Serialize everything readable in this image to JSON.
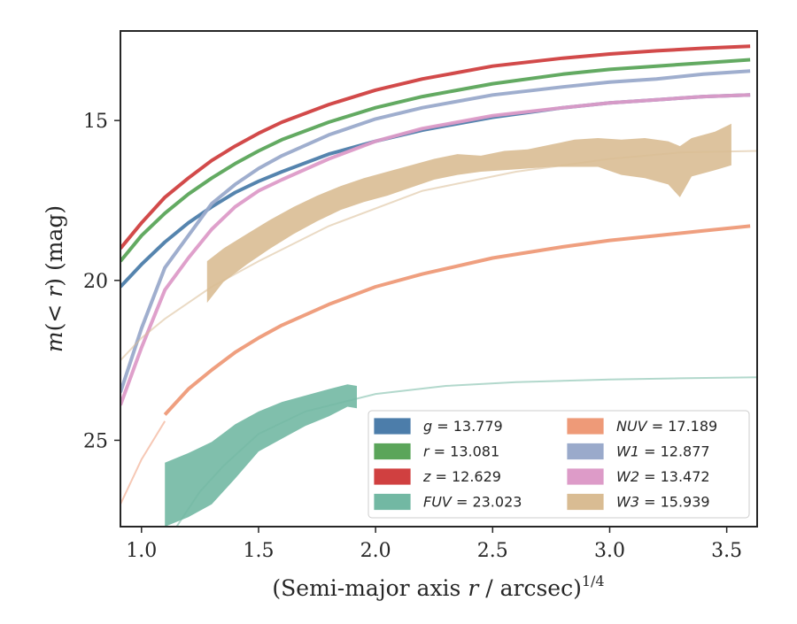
{
  "chart_data": {
    "type": "line",
    "xlabel_text": "(Semi-major axis ",
    "xlabel_var": "r",
    "xlabel_unit": " / arcsec)",
    "xlabel_exp": "1/4",
    "ylabel_pre": "m",
    "ylabel_mid": "(< ",
    "ylabel_var": "r",
    "ylabel_post": ") (mag)",
    "xlim": [
      0.91,
      3.63
    ],
    "ylim": [
      27.7,
      12.2
    ],
    "y_inverted": true,
    "xticks": [
      1.0,
      1.5,
      2.0,
      2.5,
      3.0,
      3.5
    ],
    "xtick_labels": [
      "1.0",
      "1.5",
      "2.0",
      "2.5",
      "3.0",
      "3.5"
    ],
    "yticks": [
      15,
      20,
      25
    ],
    "ytick_labels": [
      "15",
      "20",
      "25"
    ],
    "grid": false,
    "legend_position": "lower-right",
    "series": [
      {
        "name": "g",
        "total": "13.779",
        "color": "#4C7DAA",
        "kind": "line",
        "x": [
          0.91,
          1.0,
          1.1,
          1.2,
          1.3,
          1.4,
          1.5,
          1.6,
          1.8,
          2.0,
          2.2,
          2.5,
          2.8,
          3.0,
          3.2,
          3.4,
          3.6
        ],
        "y": [
          20.2,
          19.5,
          18.8,
          18.2,
          17.7,
          17.25,
          16.9,
          16.6,
          16.05,
          15.65,
          15.3,
          14.9,
          14.6,
          14.45,
          14.35,
          14.25,
          14.2
        ]
      },
      {
        "name": "r",
        "total": "13.081",
        "color": "#5BA55A",
        "kind": "line",
        "x": [
          0.91,
          1.0,
          1.1,
          1.2,
          1.3,
          1.4,
          1.5,
          1.6,
          1.8,
          2.0,
          2.2,
          2.5,
          2.8,
          3.0,
          3.2,
          3.4,
          3.6
        ],
        "y": [
          19.4,
          18.6,
          17.9,
          17.3,
          16.8,
          16.35,
          15.95,
          15.6,
          15.05,
          14.6,
          14.25,
          13.85,
          13.55,
          13.4,
          13.3,
          13.2,
          13.1
        ]
      },
      {
        "name": "z",
        "total": "12.629",
        "color": "#D04040",
        "kind": "line",
        "x": [
          0.91,
          1.0,
          1.1,
          1.2,
          1.3,
          1.4,
          1.5,
          1.6,
          1.8,
          2.0,
          2.2,
          2.5,
          2.8,
          3.0,
          3.2,
          3.4,
          3.6
        ],
        "y": [
          19.0,
          18.2,
          17.4,
          16.8,
          16.25,
          15.8,
          15.4,
          15.05,
          14.5,
          14.05,
          13.7,
          13.3,
          13.05,
          12.92,
          12.82,
          12.74,
          12.68
        ]
      },
      {
        "name": "FUV",
        "total": "23.023",
        "color": "#72B8A3",
        "kind": "band",
        "x": [
          1.1,
          1.2,
          1.3,
          1.4,
          1.5,
          1.6,
          1.7,
          1.8,
          1.88,
          1.92
        ],
        "lo": [
          25.7,
          25.4,
          25.05,
          24.5,
          24.1,
          23.8,
          23.6,
          23.4,
          23.25,
          23.3
        ],
        "hi": [
          27.7,
          27.4,
          27.0,
          26.2,
          25.35,
          24.95,
          24.55,
          24.25,
          23.95,
          24.0
        ],
        "ext_x": [
          1.15,
          1.25,
          1.35,
          1.5,
          1.7,
          2.0,
          2.3,
          2.6,
          3.0,
          3.3,
          3.63
        ],
        "ext_y": [
          27.7,
          26.6,
          25.8,
          24.8,
          24.1,
          23.55,
          23.3,
          23.18,
          23.1,
          23.06,
          23.03
        ]
      },
      {
        "name": "NUV",
        "total": "17.189",
        "color": "#EE9A78",
        "kind": "line",
        "x": [
          1.1,
          1.2,
          1.3,
          1.4,
          1.5,
          1.6,
          1.8,
          2.0,
          2.2,
          2.5,
          2.8,
          3.0,
          3.2,
          3.4,
          3.6
        ],
        "y": [
          24.2,
          23.4,
          22.8,
          22.25,
          21.8,
          21.4,
          20.75,
          20.2,
          19.8,
          19.3,
          18.95,
          18.75,
          18.6,
          18.45,
          18.3
        ],
        "ext_x": [
          0.91,
          1.0,
          1.1
        ],
        "ext_y": [
          27.0,
          25.6,
          24.4
        ]
      },
      {
        "name": "W1",
        "total": "12.877",
        "color": "#9AAACB",
        "kind": "line",
        "x": [
          0.91,
          1.0,
          1.1,
          1.2,
          1.3,
          1.4,
          1.5,
          1.6,
          1.8,
          2.0,
          2.2,
          2.5,
          2.8,
          3.0,
          3.2,
          3.4,
          3.6
        ],
        "y": [
          23.5,
          21.5,
          19.6,
          18.6,
          17.6,
          17.0,
          16.5,
          16.1,
          15.45,
          14.95,
          14.6,
          14.2,
          13.95,
          13.8,
          13.7,
          13.55,
          13.45
        ]
      },
      {
        "name": "W2",
        "total": "13.472",
        "color": "#DD9BC8",
        "kind": "line",
        "x": [
          0.91,
          1.0,
          1.1,
          1.2,
          1.3,
          1.4,
          1.5,
          1.6,
          1.8,
          2.0,
          2.2,
          2.5,
          2.8,
          3.0,
          3.2,
          3.4,
          3.6
        ],
        "y": [
          23.9,
          22.1,
          20.3,
          19.3,
          18.4,
          17.7,
          17.2,
          16.85,
          16.2,
          15.65,
          15.25,
          14.85,
          14.6,
          14.45,
          14.35,
          14.25,
          14.2
        ]
      },
      {
        "name": "W3",
        "total": "15.939",
        "color": "#D9BC93",
        "kind": "band",
        "x": [
          1.28,
          1.35,
          1.45,
          1.55,
          1.65,
          1.75,
          1.85,
          1.95,
          2.05,
          2.15,
          2.25,
          2.35,
          2.45,
          2.55,
          2.65,
          2.75,
          2.85,
          2.95,
          3.05,
          3.15,
          3.25,
          3.3,
          3.35,
          3.45,
          3.52
        ],
        "lo": [
          19.4,
          19.0,
          18.55,
          18.1,
          17.7,
          17.35,
          17.05,
          16.8,
          16.6,
          16.4,
          16.2,
          16.05,
          16.1,
          15.95,
          15.9,
          15.75,
          15.6,
          15.55,
          15.6,
          15.55,
          15.65,
          15.8,
          15.55,
          15.35,
          15.1
        ],
        "hi": [
          20.7,
          20.05,
          19.5,
          19.0,
          18.55,
          18.15,
          17.8,
          17.55,
          17.35,
          17.1,
          16.85,
          16.7,
          16.6,
          16.55,
          16.5,
          16.45,
          16.45,
          16.45,
          16.7,
          16.8,
          17.0,
          17.4,
          16.75,
          16.55,
          16.4
        ],
        "ext_x": [
          0.91,
          1.0,
          1.1,
          1.2,
          1.3,
          1.5,
          1.8,
          2.2,
          2.6,
          3.0,
          3.3,
          3.63
        ],
        "ext_y": [
          22.5,
          21.8,
          21.2,
          20.7,
          20.2,
          19.4,
          18.3,
          17.2,
          16.6,
          16.2,
          16.0,
          15.95
        ]
      }
    ]
  }
}
